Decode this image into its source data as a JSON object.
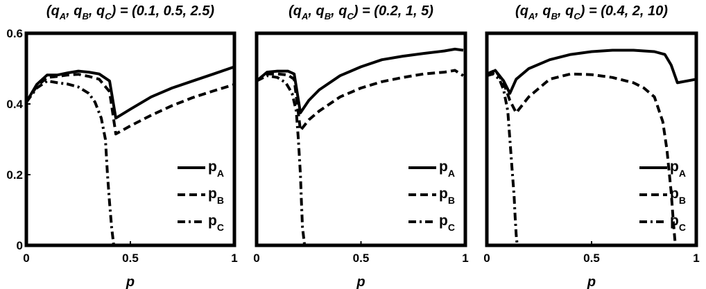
{
  "chart_data": [
    {
      "type": "line",
      "title": "(q_A, q_B, q_C) = (0.1, 0.5, 2.5)",
      "title_parts": {
        "open": "(q",
        "s1": "A",
        "m1": ", q",
        "s2": "B",
        "m2": ", q",
        "s3": "C",
        "close": ") = (0.1, 0.5, 2.5)"
      },
      "xlabel": "p",
      "ylabel": "",
      "xlim": [
        0,
        1
      ],
      "ylim": [
        0,
        0.6
      ],
      "xticks": [
        "0",
        "0.5",
        "1"
      ],
      "yticks": [
        "0",
        "0.2",
        "0.4",
        "0.6"
      ],
      "grid": false,
      "legend_position": "bottom-right",
      "series": [
        {
          "name": "p_A",
          "label_main": "p",
          "label_sub": "A",
          "style": "solid",
          "x": [
            0,
            0.05,
            0.1,
            0.15,
            0.2,
            0.25,
            0.3,
            0.35,
            0.4,
            0.43,
            0.5,
            0.6,
            0.7,
            0.8,
            0.9,
            1.0
          ],
          "y": [
            0.405,
            0.455,
            0.482,
            0.482,
            0.488,
            0.493,
            0.49,
            0.485,
            0.465,
            0.36,
            0.385,
            0.42,
            0.445,
            0.465,
            0.485,
            0.505
          ]
        },
        {
          "name": "p_B",
          "label_main": "p",
          "label_sub": "B",
          "style": "dashed",
          "x": [
            0,
            0.05,
            0.1,
            0.15,
            0.2,
            0.25,
            0.3,
            0.35,
            0.4,
            0.43,
            0.5,
            0.6,
            0.7,
            0.8,
            0.9,
            1.0
          ],
          "y": [
            0.405,
            0.45,
            0.475,
            0.478,
            0.482,
            0.484,
            0.478,
            0.47,
            0.435,
            0.315,
            0.338,
            0.368,
            0.395,
            0.418,
            0.437,
            0.455
          ]
        },
        {
          "name": "p_C",
          "label_main": "p",
          "label_sub": "C",
          "style": "dashdot",
          "x": [
            0,
            0.05,
            0.1,
            0.15,
            0.2,
            0.25,
            0.3,
            0.33,
            0.36,
            0.38,
            0.39,
            0.4,
            0.41,
            0.42
          ],
          "y": [
            0.405,
            0.445,
            0.465,
            0.46,
            0.456,
            0.448,
            0.43,
            0.405,
            0.36,
            0.3,
            0.2,
            0.12,
            0.05,
            0
          ]
        }
      ]
    },
    {
      "type": "line",
      "title": "(q_A, q_B, q_C) = (0.2, 1, 5)",
      "title_parts": {
        "open": "(q",
        "s1": "A",
        "m1": ", q",
        "s2": "B",
        "m2": ", q",
        "s3": "C",
        "close": ") = (0.2, 1, 5)"
      },
      "xlabel": "p",
      "ylabel": "",
      "xlim": [
        0,
        1
      ],
      "ylim": [
        0,
        0.6
      ],
      "xticks": [
        "0",
        "0.5",
        "1"
      ],
      "yticks": [],
      "grid": false,
      "legend_position": "bottom-right",
      "series": [
        {
          "name": "p_A",
          "label_main": "p",
          "label_sub": "A",
          "style": "solid",
          "x": [
            0,
            0.05,
            0.1,
            0.15,
            0.18,
            0.21,
            0.25,
            0.3,
            0.4,
            0.5,
            0.6,
            0.7,
            0.8,
            0.9,
            0.95,
            0.99
          ],
          "y": [
            0.465,
            0.49,
            0.493,
            0.493,
            0.485,
            0.375,
            0.41,
            0.44,
            0.48,
            0.505,
            0.525,
            0.535,
            0.543,
            0.55,
            0.555,
            0.552
          ]
        },
        {
          "name": "p_B",
          "label_main": "p",
          "label_sub": "B",
          "style": "dashed",
          "x": [
            0,
            0.05,
            0.1,
            0.15,
            0.18,
            0.21,
            0.25,
            0.3,
            0.4,
            0.5,
            0.6,
            0.7,
            0.8,
            0.9,
            0.95,
            0.99
          ],
          "y": [
            0.465,
            0.485,
            0.485,
            0.482,
            0.47,
            0.325,
            0.355,
            0.38,
            0.42,
            0.445,
            0.463,
            0.475,
            0.485,
            0.49,
            0.495,
            0.48
          ]
        },
        {
          "name": "p_C",
          "label_main": "p",
          "label_sub": "C",
          "style": "dashdot",
          "x": [
            0,
            0.05,
            0.1,
            0.14,
            0.17,
            0.19,
            0.2,
            0.21,
            0.215,
            0.22,
            0.23
          ],
          "y": [
            0.465,
            0.48,
            0.475,
            0.46,
            0.43,
            0.38,
            0.3,
            0.2,
            0.12,
            0.05,
            0
          ]
        }
      ]
    },
    {
      "type": "line",
      "title": "(q_A, q_B, q_C) = (0.4, 2, 10)",
      "title_parts": {
        "open": "(q",
        "s1": "A",
        "m1": ", q",
        "s2": "B",
        "m2": ", q",
        "s3": "C",
        "close": ") = (0.4, 2, 10)"
      },
      "xlabel": "p",
      "ylabel": "",
      "xlim": [
        0,
        1
      ],
      "ylim": [
        0,
        0.6
      ],
      "xticks": [
        "0",
        "0.5",
        "1"
      ],
      "yticks": [],
      "grid": false,
      "legend_position": "bottom-right",
      "series": [
        {
          "name": "p_A",
          "label_main": "p",
          "label_sub": "A",
          "style": "solid",
          "x": [
            0,
            0.04,
            0.08,
            0.11,
            0.14,
            0.2,
            0.3,
            0.4,
            0.5,
            0.6,
            0.7,
            0.8,
            0.85,
            0.88,
            0.91,
            1.0
          ],
          "y": [
            0.48,
            0.495,
            0.465,
            0.43,
            0.47,
            0.5,
            0.525,
            0.54,
            0.548,
            0.552,
            0.552,
            0.548,
            0.54,
            0.51,
            0.46,
            0.47
          ]
        },
        {
          "name": "p_B",
          "label_main": "p",
          "label_sub": "B",
          "style": "dashed",
          "x": [
            0,
            0.04,
            0.08,
            0.11,
            0.14,
            0.2,
            0.3,
            0.4,
            0.5,
            0.6,
            0.7,
            0.75,
            0.8,
            0.84,
            0.86,
            0.88,
            0.89,
            0.9
          ],
          "y": [
            0.485,
            0.495,
            0.46,
            0.41,
            0.375,
            0.42,
            0.47,
            0.485,
            0.483,
            0.475,
            0.46,
            0.445,
            0.42,
            0.35,
            0.27,
            0.15,
            0.07,
            0
          ]
        },
        {
          "name": "p_C",
          "label_main": "p",
          "label_sub": "C",
          "style": "dashdot",
          "x": [
            0,
            0.03,
            0.06,
            0.08,
            0.1,
            0.11,
            0.12,
            0.13,
            0.135,
            0.14,
            0.145
          ],
          "y": [
            0.48,
            0.485,
            0.47,
            0.44,
            0.38,
            0.3,
            0.22,
            0.14,
            0.08,
            0.03,
            0
          ]
        }
      ]
    }
  ]
}
